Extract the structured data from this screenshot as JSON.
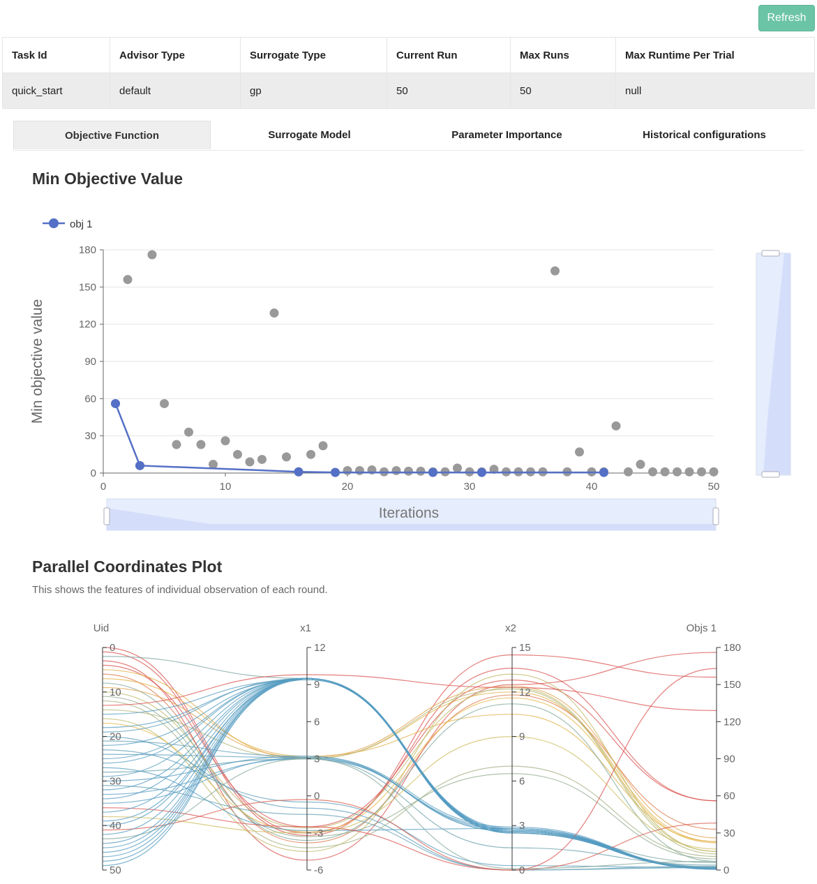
{
  "toolbar": {
    "refresh_label": "Refresh"
  },
  "task_table": {
    "headers": [
      "Task Id",
      "Advisor Type",
      "Surrogate Type",
      "Current Run",
      "Max Runs",
      "Max Runtime Per Trial"
    ],
    "row": [
      "quick_start",
      "default",
      "gp",
      "50",
      "50",
      "null"
    ]
  },
  "tabs": [
    {
      "label": "Objective Function",
      "active": true
    },
    {
      "label": "Surrogate Model",
      "active": false
    },
    {
      "label": "Parameter Importance",
      "active": false
    },
    {
      "label": "Historical configurations",
      "active": false
    }
  ],
  "objective_section": {
    "title": "Min Objective Value"
  },
  "parallel_section": {
    "title": "Parallel Coordinates Plot",
    "description": "This shows the features of individual observation of each round."
  },
  "colors": {
    "accent": "#5470c6",
    "scatter": "#999999",
    "refresh_button": "#6cc4a6",
    "zoom_fill": "#e6edfc",
    "parallel_low": "#4e9ac7",
    "parallel_mid": "#e5c24a",
    "parallel_high": "#d9534f"
  },
  "chart_data": [
    {
      "type": "scatter",
      "title": "",
      "xlabel": "Iterations",
      "ylabel": "Min objective value",
      "xlim": [
        0,
        50
      ],
      "ylim": [
        0,
        180
      ],
      "x_ticks": [
        0,
        10,
        20,
        30,
        40,
        50
      ],
      "y_ticks": [
        0,
        30,
        60,
        90,
        120,
        150,
        180
      ],
      "legend": {
        "entries": [
          "obj 1"
        ],
        "position": "top-left"
      },
      "grid": true,
      "zoom": {
        "x_slider": true,
        "y_slider": true
      },
      "series": [
        {
          "name": "",
          "kind": "scatter",
          "x": [
            1,
            2,
            3,
            4,
            5,
            6,
            7,
            8,
            9,
            10,
            11,
            12,
            13,
            14,
            15,
            16,
            17,
            18,
            19,
            20,
            21,
            22,
            23,
            24,
            25,
            26,
            27,
            28,
            29,
            30,
            31,
            32,
            33,
            34,
            35,
            36,
            37,
            38,
            39,
            40,
            41,
            42,
            43,
            44,
            45,
            46,
            47,
            48,
            49,
            50
          ],
          "y": [
            56,
            156,
            6,
            176,
            56,
            23,
            33,
            23,
            7,
            26,
            15,
            9,
            11,
            129,
            13,
            1,
            15,
            22,
            0.5,
            2,
            2,
            2.5,
            1,
            2,
            1.5,
            1.5,
            1,
            1,
            4,
            1,
            1,
            3,
            1,
            1,
            1,
            1,
            163,
            1,
            17,
            1,
            1,
            38,
            1,
            7,
            1,
            1,
            1,
            1,
            1,
            1
          ]
        },
        {
          "name": "obj 1",
          "kind": "line",
          "x": [
            1,
            3,
            16,
            19,
            27,
            31,
            41
          ],
          "y": [
            56,
            6,
            1,
            0.5,
            0.5,
            0.5,
            0.5
          ]
        }
      ]
    },
    {
      "type": "parallel",
      "title": "",
      "axes": [
        {
          "name": "Uid",
          "min": 0,
          "max": 50,
          "inverse": true,
          "ticks": [
            0,
            10,
            20,
            30,
            40,
            50
          ]
        },
        {
          "name": "x1",
          "min": -6,
          "max": 12,
          "ticks": [
            -6,
            -3,
            0,
            3,
            6,
            9,
            12
          ]
        },
        {
          "name": "x2",
          "min": 0,
          "max": 15,
          "ticks": [
            0,
            3,
            6,
            9,
            12,
            15
          ]
        },
        {
          "name": "Objs 1",
          "min": 0,
          "max": 180,
          "ticks": [
            0,
            30,
            60,
            90,
            120,
            150,
            180
          ]
        }
      ],
      "color_by": "Objs 1",
      "lines": [
        [
          0,
          -3.0,
          13.6,
          56
        ],
        [
          1,
          -3.2,
          14.5,
          156
        ],
        [
          2,
          9.5,
          2.5,
          6
        ],
        [
          3,
          -5.2,
          12.5,
          176
        ],
        [
          4,
          -2.5,
          12.8,
          56
        ],
        [
          5,
          3.0,
          12.0,
          23
        ],
        [
          6,
          -3.8,
          11.8,
          33
        ],
        [
          7,
          3.2,
          10.5,
          23
        ],
        [
          8,
          -3.6,
          11.2,
          7
        ],
        [
          9,
          3.1,
          12.4,
          26
        ],
        [
          10,
          -2.6,
          12.3,
          15
        ],
        [
          11,
          -3.3,
          6.5,
          9
        ],
        [
          12,
          -4.2,
          7.0,
          11
        ],
        [
          13,
          9.8,
          12.3,
          129
        ],
        [
          14,
          3.0,
          12.2,
          13
        ],
        [
          15,
          9.4,
          2.7,
          1
        ],
        [
          16,
          -4.5,
          13.2,
          15
        ],
        [
          17,
          -2.9,
          11.6,
          22
        ],
        [
          18,
          9.4,
          2.8,
          0.5
        ],
        [
          19,
          9.5,
          2.6,
          2
        ],
        [
          20,
          -1.0,
          0.0,
          2
        ],
        [
          21,
          3.2,
          2.6,
          2.5
        ],
        [
          22,
          9.4,
          2.6,
          1
        ],
        [
          23,
          -0.5,
          0.3,
          2
        ],
        [
          24,
          3.1,
          2.7,
          1.5
        ],
        [
          25,
          9.5,
          2.5,
          1.5
        ],
        [
          26,
          9.5,
          2.7,
          1
        ],
        [
          27,
          -2.8,
          2.8,
          1
        ],
        [
          28,
          3.0,
          1.5,
          4
        ],
        [
          29,
          9.5,
          2.6,
          1
        ],
        [
          30,
          3.2,
          2.9,
          1
        ],
        [
          31,
          -1.5,
          0.0,
          3
        ],
        [
          32,
          9.5,
          2.6,
          1
        ],
        [
          33,
          3.0,
          2.8,
          1
        ],
        [
          34,
          9.5,
          2.5,
          1
        ],
        [
          35,
          3.1,
          2.6,
          1
        ],
        [
          36,
          -2.5,
          0.0,
          163
        ],
        [
          37,
          9.5,
          2.7,
          1
        ],
        [
          38,
          -3.0,
          9.0,
          17
        ],
        [
          39,
          9.4,
          2.6,
          1
        ],
        [
          40,
          9.5,
          2.5,
          1
        ],
        [
          41,
          -0.3,
          0.0,
          38
        ],
        [
          42,
          9.5,
          2.6,
          1
        ],
        [
          43,
          3.0,
          0.1,
          7
        ],
        [
          44,
          9.5,
          2.7,
          1
        ],
        [
          45,
          9.4,
          2.5,
          1
        ],
        [
          46,
          9.5,
          2.6,
          1
        ],
        [
          47,
          9.5,
          2.7,
          1
        ],
        [
          48,
          9.4,
          2.5,
          1
        ],
        [
          49,
          9.5,
          2.6,
          1
        ]
      ]
    }
  ]
}
